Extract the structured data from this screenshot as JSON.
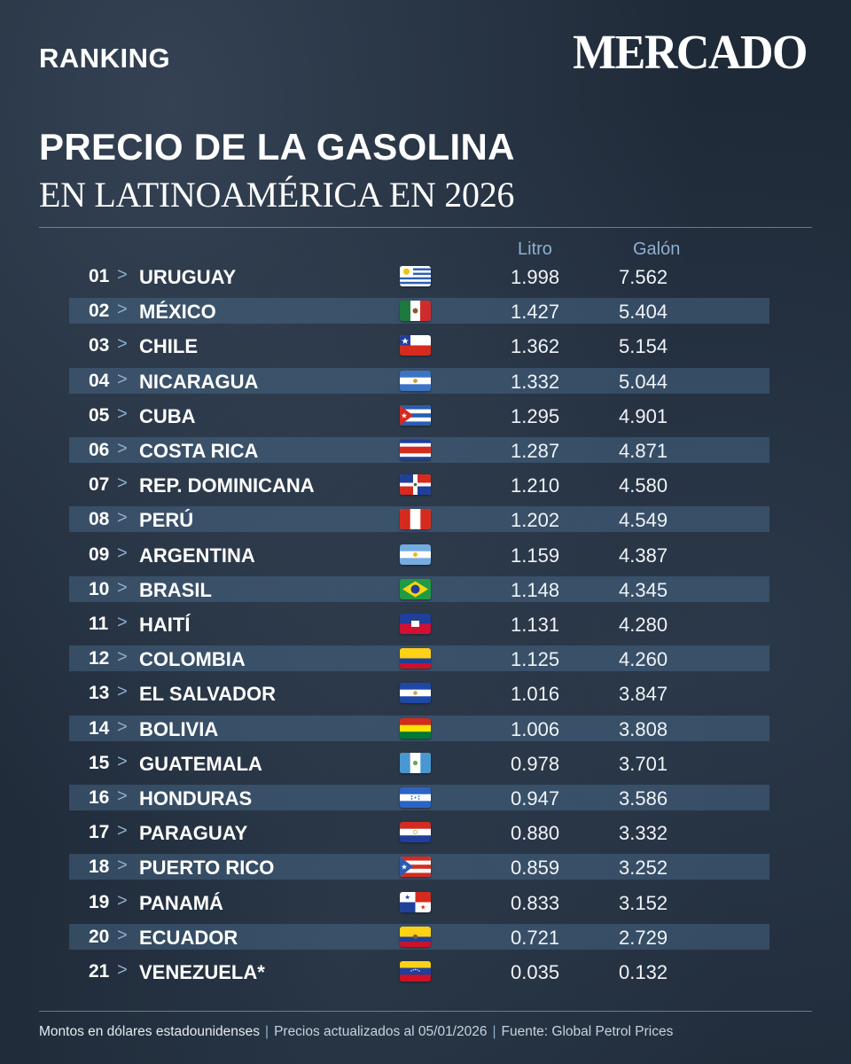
{
  "header": {
    "kicker": "RANKING",
    "brand": "MERCADO",
    "title_line1": "PRECIO DE LA GASOLINA",
    "title_line2": "EN LATINOAMÉRICA EN 2026"
  },
  "chart_data": {
    "type": "table",
    "columns": [
      "Litro",
      "Galón"
    ],
    "rows": [
      {
        "rank": "01",
        "country": "URUGUAY",
        "flag": "uruguay-flag",
        "litro": "1.998",
        "galon": "7.562"
      },
      {
        "rank": "02",
        "country": "MÉXICO",
        "flag": "mexico-flag",
        "litro": "1.427",
        "galon": "5.404"
      },
      {
        "rank": "03",
        "country": "CHILE",
        "flag": "chile-flag",
        "litro": "1.362",
        "galon": "5.154"
      },
      {
        "rank": "04",
        "country": "NICARAGUA",
        "flag": "nicaragua-flag",
        "litro": "1.332",
        "galon": "5.044"
      },
      {
        "rank": "05",
        "country": "CUBA",
        "flag": "cuba-flag",
        "litro": "1.295",
        "galon": "4.901"
      },
      {
        "rank": "06",
        "country": "COSTA RICA",
        "flag": "costa-rica-flag",
        "litro": "1.287",
        "galon": "4.871"
      },
      {
        "rank": "07",
        "country": "REP. DOMINICANA",
        "flag": "dominican-republic-flag",
        "litro": "1.210",
        "galon": "4.580"
      },
      {
        "rank": "08",
        "country": "PERÚ",
        "flag": "peru-flag",
        "litro": "1.202",
        "galon": "4.549"
      },
      {
        "rank": "09",
        "country": "ARGENTINA",
        "flag": "argentina-flag",
        "litro": "1.159",
        "galon": "4.387"
      },
      {
        "rank": "10",
        "country": "BRASIL",
        "flag": "brazil-flag",
        "litro": "1.148",
        "galon": "4.345"
      },
      {
        "rank": "11",
        "country": "HAITÍ",
        "flag": "haiti-flag",
        "litro": "1.131",
        "galon": "4.280"
      },
      {
        "rank": "12",
        "country": "COLOMBIA",
        "flag": "colombia-flag",
        "litro": "1.125",
        "galon": "4.260"
      },
      {
        "rank": "13",
        "country": "EL SALVADOR",
        "flag": "el-salvador-flag",
        "litro": "1.016",
        "galon": "3.847"
      },
      {
        "rank": "14",
        "country": "BOLIVIA",
        "flag": "bolivia-flag",
        "litro": "1.006",
        "galon": "3.808"
      },
      {
        "rank": "15",
        "country": "GUATEMALA",
        "flag": "guatemala-flag",
        "litro": "0.978",
        "galon": "3.701"
      },
      {
        "rank": "16",
        "country": "HONDURAS",
        "flag": "honduras-flag",
        "litro": "0.947",
        "galon": "3.586"
      },
      {
        "rank": "17",
        "country": "PARAGUAY",
        "flag": "paraguay-flag",
        "litro": "0.880",
        "galon": "3.332"
      },
      {
        "rank": "18",
        "country": "PUERTO RICO",
        "flag": "puerto-rico-flag",
        "litro": "0.859",
        "galon": "3.252"
      },
      {
        "rank": "19",
        "country": "PANAMÁ",
        "flag": "panama-flag",
        "litro": "0.833",
        "galon": "3.152"
      },
      {
        "rank": "20",
        "country": "ECUADOR",
        "flag": "ecuador-flag",
        "litro": "0.721",
        "galon": "2.729"
      },
      {
        "rank": "21",
        "country": "VENEZUELA*",
        "flag": "venezuela-flag",
        "litro": "0.035",
        "galon": "0.132"
      }
    ]
  },
  "footer": {
    "note": "Montos en dólares estadounidenses",
    "updated": "Precios actualizados al 05/01/2026",
    "source": "Fuente:  Global Petrol Prices"
  },
  "colors": {
    "background": "#1f2a38",
    "stripe": "#4b6e91",
    "accent": "#8fb0d0"
  }
}
